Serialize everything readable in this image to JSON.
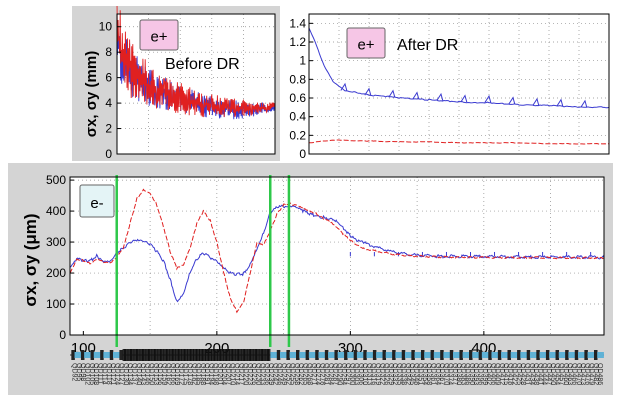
{
  "chart_data": [
    {
      "id": "before",
      "type": "line",
      "badge": "e+",
      "label": "Before DR",
      "ylabel": "σx, σy (mm)",
      "ylim": [
        0,
        11
      ],
      "yticks": [
        0,
        2,
        4,
        6,
        8,
        10
      ],
      "xlim": [
        0,
        100
      ],
      "series": [
        {
          "color": "#3a3ad0",
          "style": "solid",
          "x": [
            0,
            3,
            6,
            9,
            12,
            16,
            20,
            25,
            30,
            35,
            40,
            45,
            50,
            55,
            60,
            65,
            70,
            75,
            80,
            85,
            90,
            95,
            100
          ],
          "y": [
            9,
            7.5,
            7,
            6.5,
            6,
            5.6,
            5.3,
            5,
            4.8,
            4.5,
            4.3,
            4.1,
            4,
            3.8,
            3.7,
            3.6,
            3.5,
            3.5,
            3.5,
            3.5,
            3.6,
            3.6,
            3.7
          ],
          "band": [
            2.5,
            2.3,
            2.2,
            2,
            1.8,
            1.6,
            1.5,
            1.4,
            1.3,
            1.2,
            1.1,
            1.05,
            1,
            0.95,
            0.9,
            0.85,
            0.8,
            0.8,
            0.7,
            0.6,
            0.5,
            0.4,
            0.3
          ]
        },
        {
          "color": "#e02020",
          "style": "solid",
          "x": [
            0,
            3,
            6,
            9,
            12,
            16,
            20,
            25,
            30,
            35,
            40,
            45,
            50,
            55,
            60,
            65,
            70,
            75,
            80,
            85,
            90,
            95,
            100
          ],
          "y": [
            9.5,
            8,
            7.2,
            6.7,
            6.2,
            5.8,
            5.4,
            5.1,
            4.9,
            4.6,
            4.4,
            4.2,
            4,
            3.9,
            3.8,
            3.7,
            3.6,
            3.6,
            3.6,
            3.6,
            3.6,
            3.7,
            3.8
          ],
          "band": [
            3,
            2.8,
            2.6,
            2.4,
            2.2,
            2,
            1.8,
            1.6,
            1.5,
            1.4,
            1.3,
            1.2,
            1.1,
            1,
            1,
            0.9,
            0.8,
            0.8,
            0.7,
            0.6,
            0.5,
            0.4,
            0.3
          ]
        }
      ]
    },
    {
      "id": "after",
      "type": "line",
      "badge": "e+",
      "label": "After DR",
      "ylim": [
        0,
        1.5
      ],
      "yticks": [
        0,
        0.2,
        0.4,
        0.6,
        0.8,
        1,
        1.2,
        1.4
      ],
      "ytick_labels": [
        "0",
        "0.2",
        "0.4",
        "0.6",
        "0.8",
        "1",
        "1.2",
        "1.4"
      ],
      "xlim": [
        0,
        100
      ],
      "series": [
        {
          "color": "#3a3ad0",
          "style": "solid",
          "x": [
            0,
            2,
            5,
            8,
            12,
            16,
            20,
            25,
            30,
            35,
            40,
            45,
            50,
            55,
            60,
            65,
            70,
            75,
            80,
            85,
            90,
            95,
            100
          ],
          "y": [
            1.35,
            1.2,
            0.95,
            0.78,
            0.68,
            0.66,
            0.63,
            0.62,
            0.6,
            0.59,
            0.58,
            0.57,
            0.56,
            0.55,
            0.55,
            0.54,
            0.53,
            0.52,
            0.52,
            0.51,
            0.5,
            0.5,
            0.5
          ]
        },
        {
          "color": "#e02020",
          "style": "dashed",
          "x": [
            0,
            5,
            10,
            15,
            20,
            30,
            40,
            50,
            60,
            70,
            80,
            90,
            100
          ],
          "y": [
            0.12,
            0.14,
            0.15,
            0.14,
            0.14,
            0.13,
            0.13,
            0.12,
            0.12,
            0.12,
            0.11,
            0.11,
            0.11
          ]
        }
      ]
    },
    {
      "id": "eminus",
      "type": "line",
      "badge": "e-",
      "ylabel": "σx, σy (μm)",
      "xlim": [
        90,
        490
      ],
      "ylim": [
        0,
        510
      ],
      "xticks": [
        100,
        200,
        300,
        400
      ],
      "yticks": [
        0,
        100,
        200,
        300,
        400,
        500
      ],
      "vlines": [
        125,
        240,
        254
      ],
      "series": [
        {
          "name": "σx",
          "color": "#3a3ad0",
          "style": "solid",
          "x": [
            90,
            95,
            100,
            105,
            110,
            115,
            120,
            125,
            130,
            135,
            140,
            145,
            150,
            155,
            160,
            165,
            170,
            175,
            180,
            185,
            190,
            195,
            200,
            205,
            210,
            215,
            220,
            225,
            230,
            235,
            240,
            245,
            250,
            255,
            260,
            265,
            270,
            275,
            280,
            285,
            290,
            295,
            300,
            305,
            310,
            320,
            330,
            340,
            350,
            360,
            370,
            380,
            400,
            420,
            440,
            460,
            480,
            490
          ],
          "y": [
            215,
            245,
            240,
            240,
            255,
            240,
            240,
            265,
            280,
            298,
            305,
            300,
            292,
            270,
            240,
            180,
            110,
            135,
            205,
            245,
            265,
            250,
            235,
            215,
            200,
            195,
            198,
            230,
            280,
            330,
            395,
            412,
            415,
            413,
            410,
            400,
            390,
            385,
            380,
            378,
            368,
            345,
            320,
            305,
            298,
            283,
            270,
            262,
            258,
            255,
            254,
            254,
            253,
            253,
            252,
            252,
            251,
            250
          ]
        },
        {
          "name": "σy",
          "color": "#e02020",
          "style": "dashed",
          "x": [
            90,
            95,
            100,
            105,
            110,
            115,
            120,
            125,
            130,
            135,
            140,
            145,
            150,
            155,
            160,
            165,
            170,
            175,
            180,
            185,
            190,
            195,
            200,
            205,
            210,
            215,
            220,
            225,
            230,
            235,
            240,
            245,
            250,
            255,
            260,
            265,
            270,
            275,
            280,
            285,
            290,
            295,
            300,
            305,
            310,
            320,
            330,
            340,
            350,
            360,
            370,
            380,
            400,
            420,
            440,
            460,
            480,
            490
          ],
          "y": [
            200,
            245,
            240,
            230,
            245,
            235,
            230,
            250,
            280,
            360,
            440,
            470,
            460,
            420,
            350,
            270,
            215,
            225,
            280,
            360,
            400,
            370,
            300,
            205,
            120,
            75,
            105,
            200,
            295,
            290,
            335,
            390,
            420,
            423,
            420,
            410,
            400,
            390,
            375,
            365,
            345,
            325,
            305,
            290,
            280,
            270,
            262,
            257,
            255,
            253,
            252,
            251,
            250,
            250,
            250,
            249,
            249,
            248
          ]
        }
      ]
    }
  ],
  "strip_tick_label": "100"
}
